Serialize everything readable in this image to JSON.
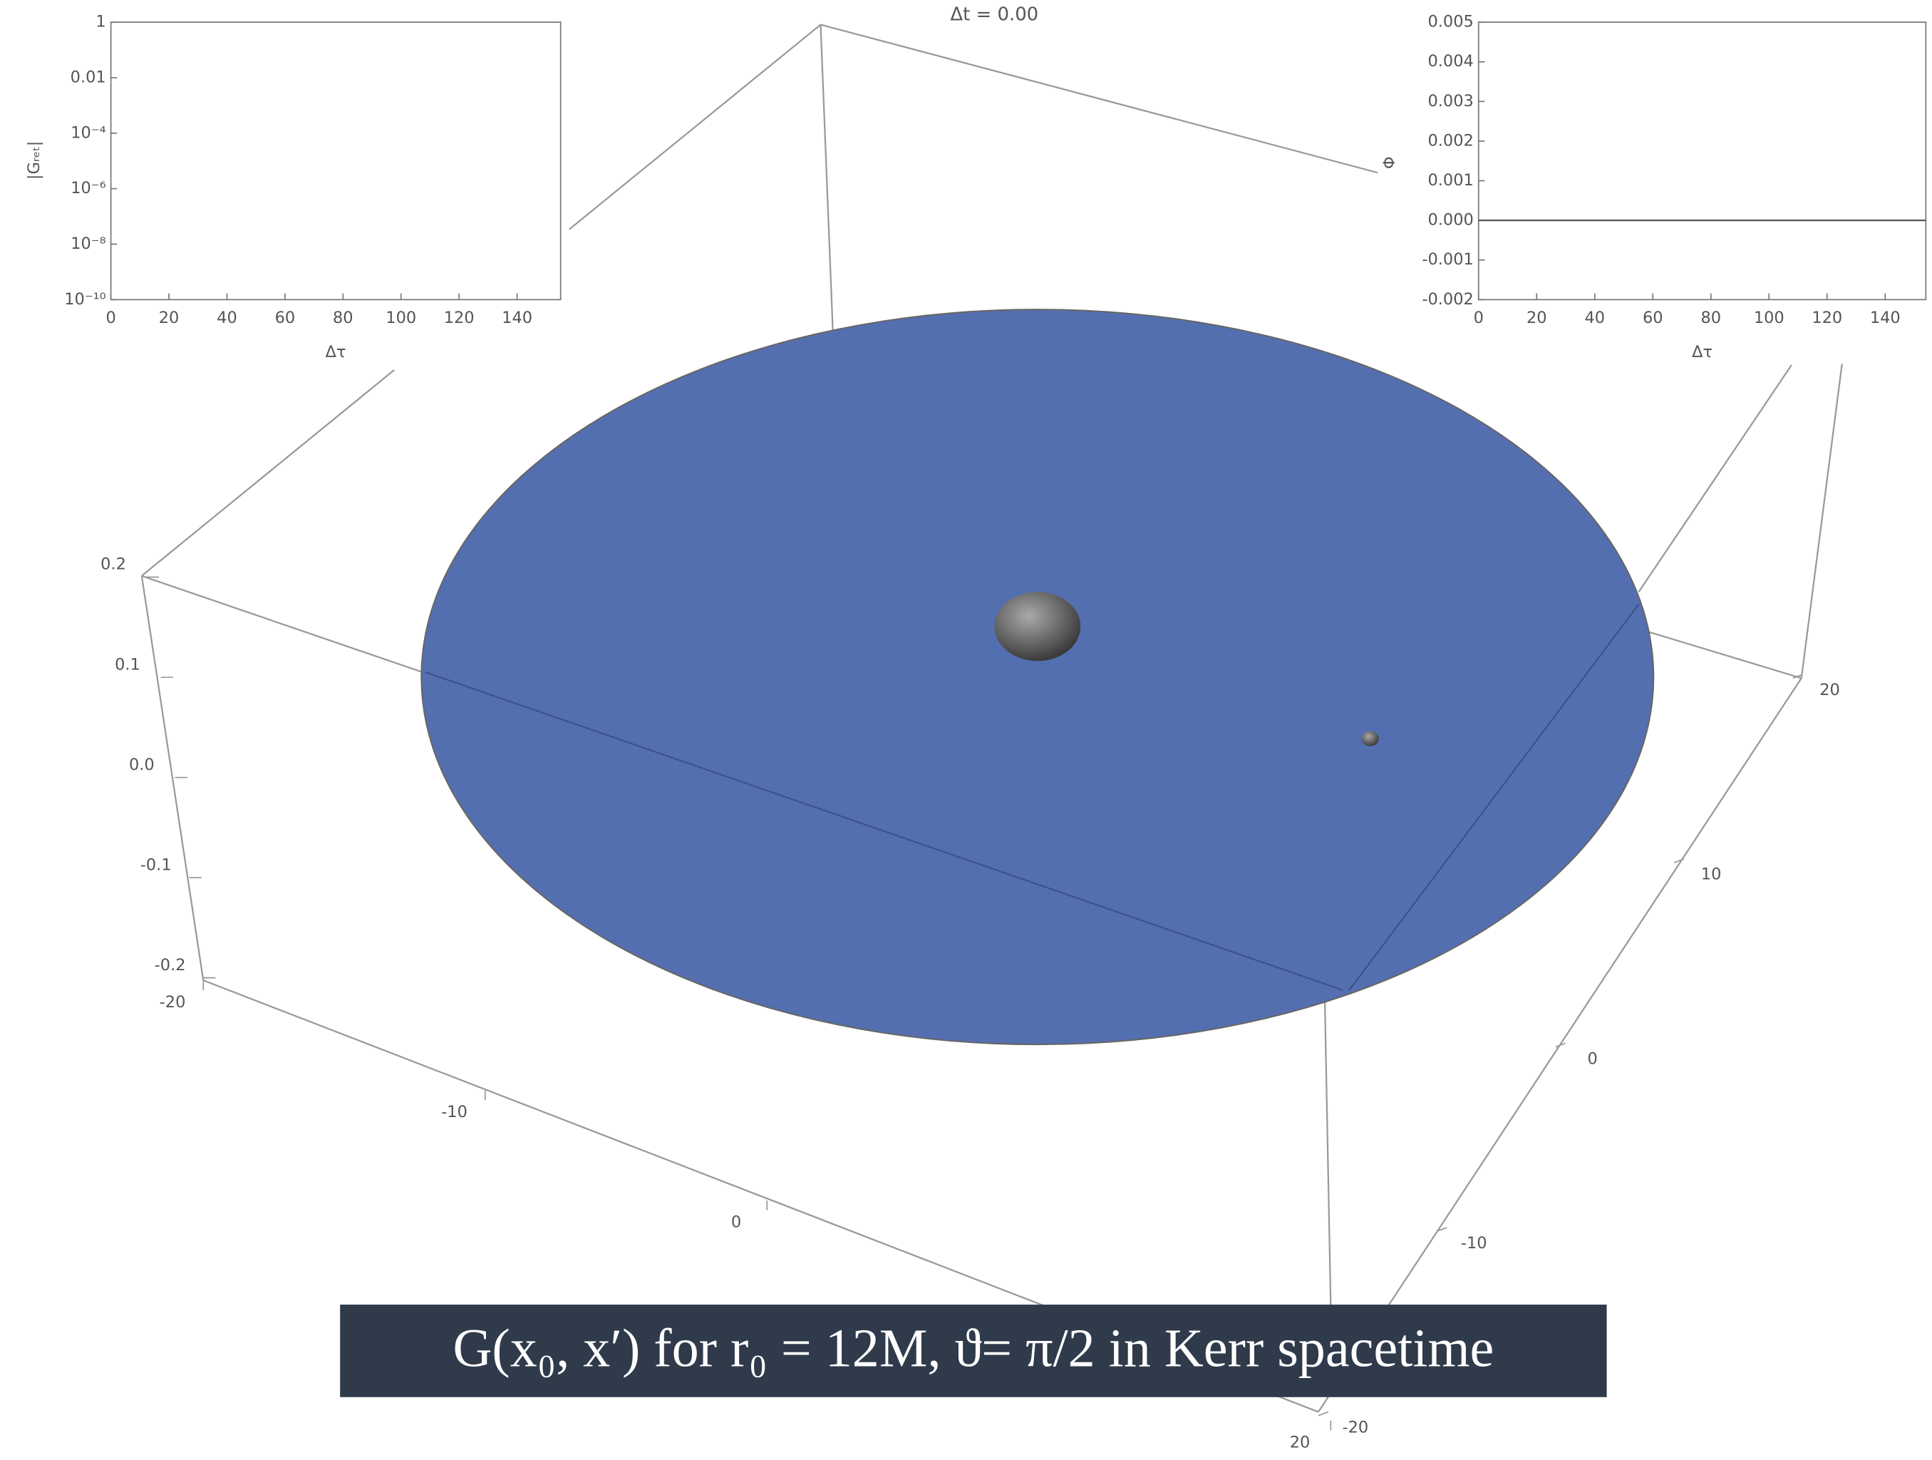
{
  "title": "Δt = 0.00",
  "caption": "G(x₀, x′) for r₀ = 12M, ϑ= π/2 in Kerr spacetime",
  "chart_data": [
    {
      "type": "line",
      "x_label": "Δτ",
      "y_label": "|Gᵣₑₜ|",
      "log_y": true,
      "xlim": [
        0,
        155
      ],
      "xticks": [
        0,
        20,
        40,
        60,
        80,
        100,
        120,
        140
      ],
      "ylim": [
        1e-10,
        1
      ],
      "yticks": [
        1,
        0.01,
        {
          "value": 0.0001,
          "label": "10⁻⁴"
        },
        {
          "value": 1e-06,
          "label": "10⁻⁶"
        },
        {
          "value": 1e-08,
          "label": "10⁻⁸"
        },
        {
          "value": 1e-10,
          "label": "10⁻¹⁰"
        }
      ]
    },
    {
      "type": "line",
      "x_label": "Δτ",
      "y_label": "Φ",
      "xlim": [
        0,
        154
      ],
      "xticks": [
        0,
        20,
        40,
        60,
        80,
        100,
        120,
        140
      ],
      "ylim": [
        -0.002,
        0.005
      ],
      "yticks": [
        0.005,
        0.004,
        0.003,
        0.002,
        0.001,
        {
          "value": 0,
          "label": "0.000"
        },
        -0.001,
        -0.002
      ],
      "series": [
        {
          "color": "#555555",
          "x": [
            0,
            154
          ],
          "values": [
            0,
            0
          ]
        }
      ]
    },
    {
      "type": "surface3d",
      "color": "#546fb0",
      "xlim": [
        -20,
        20
      ],
      "xticks": [
        -20,
        -10,
        0,
        20
      ],
      "ylim": [
        -20,
        20
      ],
      "yticks": [
        20,
        10,
        0,
        -10,
        -20
      ],
      "zlim": [
        -0.2,
        0.2
      ],
      "zticks": [
        0.2,
        0.1,
        {
          "value": 0,
          "label": "0.0"
        },
        -0.1,
        -0.2
      ]
    }
  ]
}
